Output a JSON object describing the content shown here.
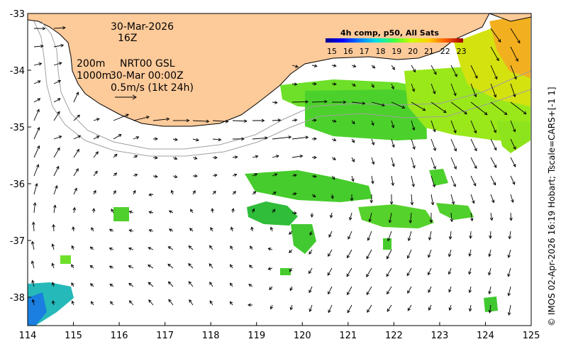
{
  "map": {
    "lon_ticks": [
      "114",
      "115",
      "116",
      "117",
      "118",
      "119",
      "120",
      "121",
      "122",
      "123",
      "124",
      "125"
    ],
    "lat_ticks": [
      "-33",
      "-34",
      "-35",
      "-36",
      "-37",
      "-38"
    ],
    "lon_range": [
      114,
      125
    ],
    "lat_range": [
      -38.5,
      -33
    ],
    "land_color": "#fdca9a",
    "sst_scale_min": 15,
    "sst_scale_max": 23.5
  },
  "annotations": {
    "date": "30-Mar-2026",
    "hour": "16Z",
    "line1_left": "200m",
    "line1_right": "NRT00 GSL",
    "line2_left": "1000m",
    "line2_right": "30-Mar 00:00Z",
    "scale_text": "0.5m/s (1kt 24h)"
  },
  "colorbar": {
    "title": "4h comp, p50, All Sats",
    "labels": [
      "15",
      "16",
      "17",
      "18",
      "19",
      "20",
      "21",
      "22",
      "23"
    ]
  },
  "credit": "© IMOS 02-Apr-2026 16:19 Hobart; Tscale=CARS+[-1 1]"
}
